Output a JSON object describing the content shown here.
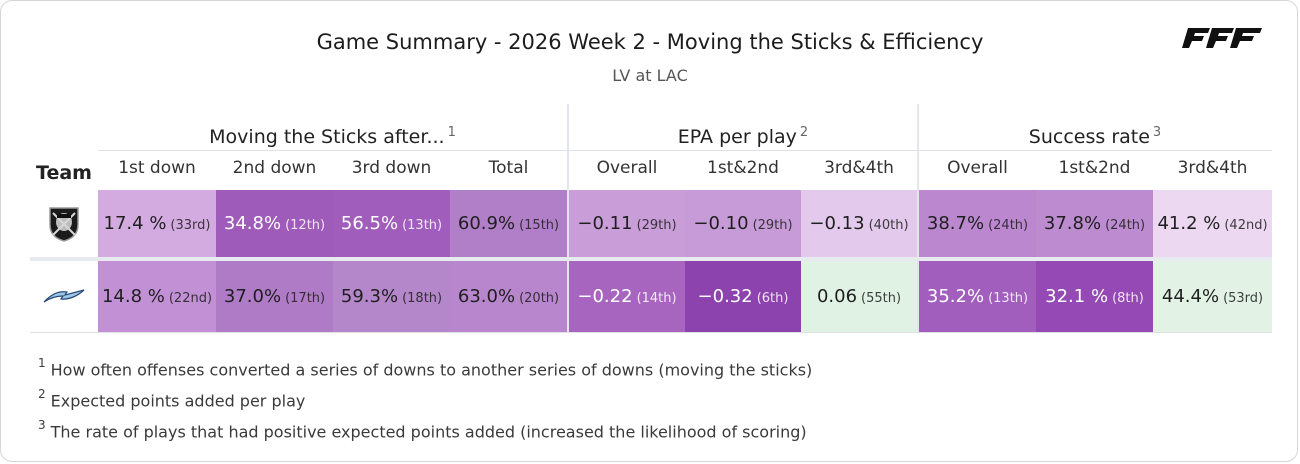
{
  "header": {
    "title": "Game Summary - 2026 Week 2 - Moving the Sticks & Efficiency",
    "subtitle": "LV at LAC",
    "brand_logo": "PFF"
  },
  "groups": [
    {
      "label": "Moving the Sticks after...",
      "note": "1"
    },
    {
      "label": "EPA per play",
      "note": "2"
    },
    {
      "label": "Success rate",
      "note": "3"
    }
  ],
  "team_header": "Team",
  "columns": [
    "1st down",
    "2nd down",
    "3rd down",
    "Total",
    "Overall",
    "1st&2nd",
    "3rd&4th",
    "Overall",
    "1st&2nd",
    "3rd&4th"
  ],
  "rows": [
    {
      "team_icon": "raiders-logo-icon",
      "cells": [
        {
          "value": "17.4 %",
          "rank": "(33rd)",
          "color": "#d3abe0"
        },
        {
          "value": "34.8%",
          "rank": "(12th)",
          "color": "#9f5bba"
        },
        {
          "value": "56.5%",
          "rank": "(13th)",
          "color": "#a05dbb"
        },
        {
          "value": "60.9%",
          "rank": "(15th)",
          "color": "#b17fc8"
        },
        {
          "value": "−0.11",
          "rank": "(29th)",
          "color": "#c89dd8"
        },
        {
          "value": "−0.10",
          "rank": "(29th)",
          "color": "#c79bd7"
        },
        {
          "value": "−0.13",
          "rank": "(40th)",
          "color": "#e3c9ec"
        },
        {
          "value": "38.7%",
          "rank": "(24th)",
          "color": "#bb88cf"
        },
        {
          "value": "37.8%",
          "rank": "(24th)",
          "color": "#bd8bd0"
        },
        {
          "value": "41.2 %",
          "rank": "(42nd)",
          "color": "#ecd8f1"
        }
      ]
    },
    {
      "team_icon": "chargers-logo-icon",
      "cells": [
        {
          "value": "14.8 %",
          "rank": "(22nd)",
          "color": "#c290d4"
        },
        {
          "value": "37.0%",
          "rank": "(17th)",
          "color": "#b07bc6"
        },
        {
          "value": "59.3%",
          "rank": "(18th)",
          "color": "#b486ca"
        },
        {
          "value": "63.0%",
          "rank": "(20th)",
          "color": "#b886cc"
        },
        {
          "value": "−0.22",
          "rank": "(14th)",
          "color": "#a865c0"
        },
        {
          "value": "−0.32",
          "rank": "(6th)",
          "color": "#8d43ae"
        },
        {
          "value": "0.06",
          "rank": "(55th)",
          "color": "#e0f2e4"
        },
        {
          "value": "35.2%",
          "rank": "(13th)",
          "color": "#a15ebd"
        },
        {
          "value": "32.1 %",
          "rank": "(8th)",
          "color": "#9549b4"
        },
        {
          "value": "44.4%",
          "rank": "(53rd)",
          "color": "#e2f3e6"
        }
      ]
    }
  ],
  "footnotes": [
    {
      "num": "1",
      "text": "How often offenses converted a series of downs to another series of downs (moving the sticks)"
    },
    {
      "num": "2",
      "text": "Expected points added per play"
    },
    {
      "num": "3",
      "text": "The rate of plays that had positive expected points added (increased the likelihood of scoring)"
    }
  ]
}
